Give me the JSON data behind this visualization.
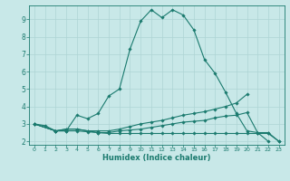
{
  "xlabel": "Humidex (Indice chaleur)",
  "xlim": [
    -0.5,
    23.5
  ],
  "ylim": [
    1.8,
    9.8
  ],
  "yticks": [
    2,
    3,
    4,
    5,
    6,
    7,
    8,
    9
  ],
  "xticks": [
    0,
    1,
    2,
    3,
    4,
    5,
    6,
    7,
    8,
    9,
    10,
    11,
    12,
    13,
    14,
    15,
    16,
    17,
    18,
    19,
    20,
    21,
    22,
    23
  ],
  "bg_color": "#c8e8e8",
  "grid_color": "#aed4d4",
  "line_color": "#1a7a6e",
  "figsize": [
    3.2,
    2.0
  ],
  "dpi": 100,
  "lines": [
    {
      "x": [
        0,
        1,
        2,
        3,
        4,
        5,
        6,
        7,
        8,
        9,
        10,
        11,
        12,
        13,
        14,
        15,
        16,
        17,
        18,
        19,
        20,
        21,
        22,
        23
      ],
      "y": [
        3.0,
        2.9,
        2.6,
        2.6,
        3.5,
        3.3,
        3.6,
        4.6,
        5.0,
        7.3,
        8.9,
        9.55,
        9.1,
        9.55,
        9.25,
        8.4,
        6.7,
        5.9,
        4.8,
        3.6,
        2.6,
        2.5,
        2.0,
        null
      ]
    },
    {
      "x": [
        0,
        2,
        3,
        4,
        5,
        6,
        7,
        8,
        9,
        10,
        11,
        12,
        13,
        14,
        15,
        16,
        17,
        18,
        19,
        20
      ],
      "y": [
        3.0,
        2.6,
        2.7,
        2.7,
        2.6,
        2.6,
        2.6,
        2.7,
        2.85,
        3.0,
        3.1,
        3.2,
        3.35,
        3.5,
        3.6,
        3.7,
        3.85,
        4.0,
        4.2,
        4.7
      ]
    },
    {
      "x": [
        0,
        2,
        3,
        4,
        5,
        6,
        7,
        8,
        9,
        10,
        11,
        12,
        13,
        14,
        15,
        16,
        17,
        18,
        19,
        20,
        21,
        22,
        23
      ],
      "y": [
        3.0,
        2.6,
        2.7,
        2.7,
        2.6,
        2.5,
        2.5,
        2.6,
        2.65,
        2.7,
        2.8,
        2.9,
        3.0,
        3.1,
        3.15,
        3.2,
        3.35,
        3.45,
        3.5,
        3.65,
        2.5,
        2.5,
        2.0
      ]
    },
    {
      "x": [
        0,
        2,
        3,
        4,
        5,
        6,
        7,
        8,
        9,
        10,
        11,
        12,
        13,
        14,
        15,
        16,
        17,
        18,
        19,
        20,
        21,
        22,
        23
      ],
      "y": [
        3.0,
        2.6,
        2.6,
        2.6,
        2.55,
        2.5,
        2.45,
        2.45,
        2.45,
        2.45,
        2.45,
        2.45,
        2.45,
        2.45,
        2.45,
        2.45,
        2.45,
        2.45,
        2.45,
        2.45,
        2.45,
        2.45,
        2.0
      ]
    }
  ]
}
